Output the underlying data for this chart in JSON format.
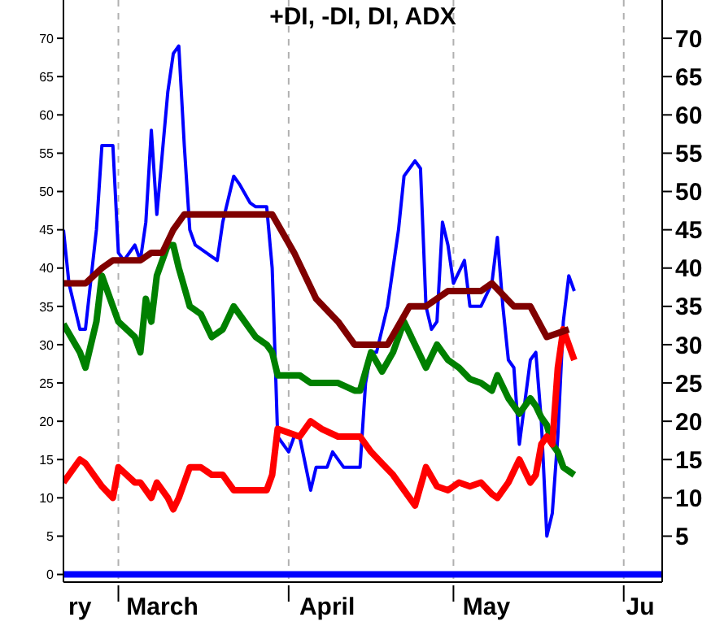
{
  "chart_data": {
    "type": "line",
    "title": "+DI, -DI, DI, ADX",
    "x": [
      "--02-19",
      "--02-22",
      "--02-23",
      "--02-25",
      "--02-26",
      "--02-28",
      "--03-01",
      "--03-04",
      "--03-05",
      "--03-06",
      "--03-07",
      "--03-08",
      "--03-10",
      "--03-11",
      "--03-12",
      "--03-14",
      "--03-16",
      "--03-18",
      "--03-20",
      "--03-22",
      "--03-24",
      "--03-26",
      "--03-28",
      "--03-29",
      "--03-30",
      "--04-01",
      "--04-03",
      "--04-05",
      "--04-07",
      "--04-10",
      "--04-13",
      "--04-14",
      "--04-16",
      "--04-18",
      "--04-20",
      "--04-22",
      "--04-24",
      "--04-26",
      "--04-28",
      "--04-30",
      "--05-02",
      "--05-04",
      "--05-06",
      "--05-08",
      "--05-09",
      "--05-11",
      "--05-13",
      "--05-15",
      "--05-16",
      "--05-17",
      "--05-18",
      "--05-19",
      "--05-20",
      "--05-21",
      "--05-23"
    ],
    "series": [
      {
        "color": "#0000ff",
        "x": [
          "--02-19",
          "--02-20",
          "--02-22",
          "--02-23",
          "--02-25",
          "--02-26",
          "--02-28",
          "--03-01",
          "--03-02",
          "--03-04",
          "--03-05",
          "--03-06",
          "--03-07",
          "--03-08",
          "--03-09",
          "--03-10",
          "--03-11",
          "--03-12",
          "--03-13",
          "--03-14",
          "--03-15",
          "--03-17",
          "--03-19",
          "--03-20",
          "--03-22",
          "--03-23",
          "--03-25",
          "--03-26",
          "--03-28",
          "--03-29",
          "--03-30",
          "--04-01",
          "--04-02",
          "--04-03",
          "--04-05",
          "--04-06",
          "--04-08",
          "--04-09",
          "--04-11",
          "--04-14",
          "--04-15",
          "--04-16",
          "--04-17",
          "--04-19",
          "--04-21",
          "--04-22",
          "--04-24",
          "--04-25",
          "--04-26",
          "--04-27",
          "--04-28",
          "--04-29",
          "--04-30",
          "--05-01",
          "--05-03",
          "--05-04",
          "--05-06",
          "--05-08",
          "--05-09",
          "--05-10",
          "--05-11",
          "--05-12",
          "--05-13",
          "--05-15",
          "--05-16",
          "--05-17",
          "--05-18",
          "--05-19",
          "--05-20",
          "--05-21",
          "--05-22",
          "--05-23"
        ],
        "values": [
          45,
          38,
          32,
          32,
          45,
          56,
          56,
          42,
          41,
          43,
          41,
          46,
          58,
          47,
          55,
          63,
          68,
          69,
          56,
          45,
          43,
          42,
          41,
          46,
          52,
          51,
          48.5,
          48,
          48,
          40,
          18,
          16,
          18,
          18,
          11,
          14,
          14,
          16,
          14,
          14,
          25,
          29,
          29,
          35,
          45,
          52,
          54,
          53,
          35,
          32,
          33,
          46,
          43,
          38,
          41,
          35,
          35,
          38,
          44,
          35,
          28,
          27,
          17,
          28,
          29,
          20,
          5,
          8,
          18,
          33,
          39,
          37
        ]
      },
      {
        "color": "#008000",
        "values": [
          32.7,
          29,
          27,
          33,
          39,
          35,
          33,
          31,
          29,
          36,
          33,
          39,
          43,
          43,
          40,
          35,
          34,
          31,
          32,
          35,
          33,
          31,
          30,
          29,
          26,
          26,
          26,
          25,
          25,
          25,
          24,
          24,
          29,
          26.5,
          29,
          33,
          30,
          27,
          30,
          28,
          27,
          25.5,
          25,
          24,
          26,
          23,
          21,
          23,
          22,
          20.5,
          19.5,
          17,
          16,
          14,
          13
        ]
      },
      {
        "color": "#ff0000",
        "values": [
          12,
          15,
          14.5,
          12.5,
          11.5,
          10,
          14,
          12,
          12,
          11,
          10,
          12,
          10,
          8.5,
          10,
          14,
          14,
          13,
          13,
          11,
          11,
          11,
          11,
          13,
          19,
          18.5,
          18,
          20,
          19,
          18,
          18,
          18,
          16,
          14.5,
          13,
          11,
          9,
          14,
          11.5,
          11,
          12,
          11.5,
          12,
          10.5,
          10,
          12,
          15,
          12,
          13,
          17,
          18,
          17,
          27,
          32,
          28
        ]
      },
      {
        "color": "#800000",
        "x": [
          "--02-19",
          "--02-23",
          "--02-26",
          "--02-28",
          "--03-05",
          "--03-07",
          "--03-09",
          "--03-11",
          "--03-13",
          "--03-29",
          "--04-02",
          "--04-06",
          "--04-10",
          "--04-13",
          "--04-19",
          "--04-23",
          "--04-26",
          "--04-30",
          "--05-06",
          "--05-08",
          "--05-12",
          "--05-15",
          "--05-18",
          "--05-22"
        ],
        "values": [
          38,
          38,
          40,
          41,
          41,
          42,
          42,
          45,
          47,
          47,
          42,
          36,
          33,
          30,
          30,
          35,
          35,
          37,
          37,
          38,
          35,
          35,
          31,
          32
        ]
      }
    ],
    "xlim": [
      "--02-19",
      "--06-08"
    ],
    "xticks": [
      {
        "value": "--02-22",
        "label": "ry"
      },
      {
        "value": "--03-01",
        "label": null
      },
      {
        "value": "--03-09",
        "label": "March"
      },
      {
        "value": "--04-01",
        "label": null
      },
      {
        "value": "--04-08",
        "label": "April"
      },
      {
        "value": "--05-01",
        "label": null
      },
      {
        "value": "--05-07",
        "label": "May"
      },
      {
        "value": "--06-01",
        "label": null
      },
      {
        "value": "--06-04",
        "label": "Ju"
      }
    ],
    "ylim": [
      -1,
      75
    ],
    "yticks": [
      0,
      5,
      10,
      15,
      20,
      25,
      30,
      35,
      40,
      45,
      50,
      55,
      60,
      65,
      70
    ],
    "y2lim": [
      -1,
      75
    ],
    "y2ticks": [
      5,
      10,
      15,
      20,
      25,
      30,
      35,
      40,
      45,
      50,
      55,
      60,
      65,
      70
    ],
    "grid": "x",
    "ref_lines": [
      {
        "axis": "y",
        "value": 0,
        "color": "#0000ff"
      }
    ]
  }
}
